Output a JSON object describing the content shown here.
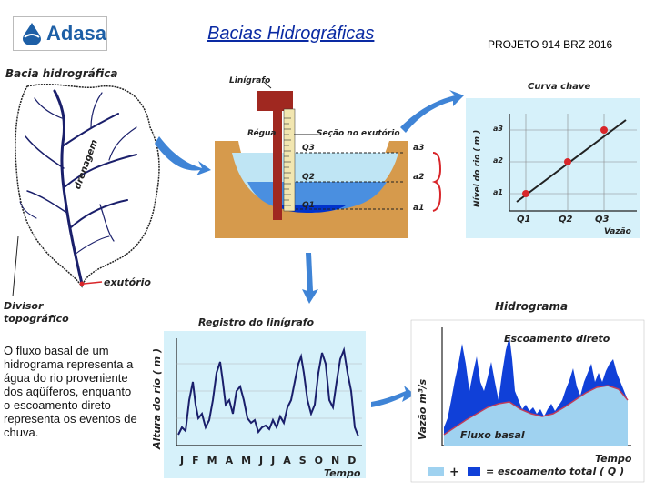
{
  "header": {
    "logo_text": "Adasa",
    "title": "Bacias Hidrográficas",
    "project": "PROJETO 914 BRZ 2016"
  },
  "basin": {
    "title": "Bacia hidrográfica",
    "drainage_label": "drenagem",
    "outlet_label": "exutório",
    "divide_label_1": "Divisor",
    "divide_label_2": "topográfico"
  },
  "section": {
    "gauge_label": "Linígrafo",
    "ruler_label": "Régua",
    "section_label": "Seção no exutório",
    "flows": [
      "Q3",
      "Q2",
      "Q1"
    ],
    "levels": [
      "a3",
      "a2",
      "a1"
    ]
  },
  "rating_curve": {
    "title": "Curva chave",
    "ylabel": "Nível do rio ( m )",
    "xlabel": "Vazão",
    "xticks": [
      "Q1",
      "Q2",
      "Q3"
    ],
    "yticks": [
      "a3",
      "a2",
      "a1"
    ]
  },
  "stage_record": {
    "title": "Registro do linígrafo",
    "ylabel": "Altura do rio ( m )",
    "xlabel": "Tempo",
    "months": [
      "J",
      "F",
      "M",
      "A",
      "M",
      "J",
      "J",
      "A",
      "S",
      "O",
      "N",
      "D"
    ]
  },
  "hydrograph": {
    "title": "Hidrograma",
    "ylabel": "Vazão m³/s",
    "xlabel": "Tempo",
    "direct_runoff": "Escoamento direto",
    "baseflow": "Fluxo basal",
    "legend_plus": "+",
    "legend_text": "= escoamento total ( Q )"
  },
  "note": {
    "text": "O fluxo basal de um hidrograma representa a água do rio proveniente dos aqüíferos, enquanto o escoamento direto representa os eventos de chuva."
  },
  "colors": {
    "logo_blue": "#1d5fa6",
    "title_blue": "#0a2aa3",
    "water_light": "#9fd6ee",
    "water_dark": "#0033cc",
    "soil": "#d69a4c",
    "chart_bg": "#d6f1fa",
    "hydro_blue": "#1040d8",
    "hydro_light": "#9fd2f0",
    "point_red": "#d8262a",
    "arrow_blue": "#3f84d6"
  }
}
